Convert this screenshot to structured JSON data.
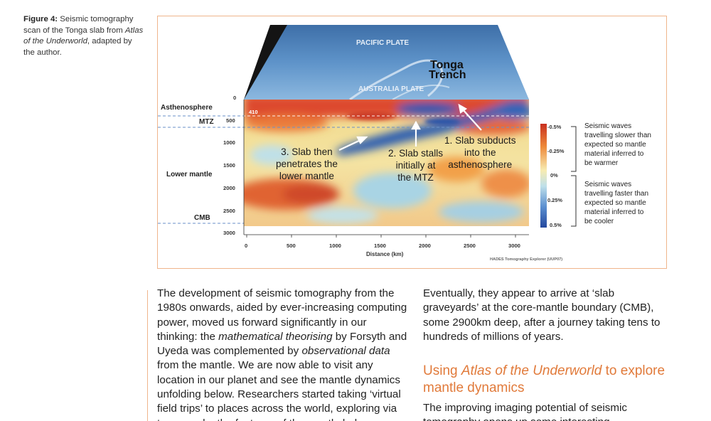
{
  "caption": {
    "label": "Figure 4:",
    "text_before": "Seismic tomography scan of the Tonga slab from",
    "source": "Atlas of the Underworld",
    "text_after": ", adapted by the author."
  },
  "figure": {
    "map_labels": {
      "pacific_plate": "PACIFIC PLATE",
      "tonga_trench_line1": "Tonga",
      "tonga_trench_line2": "Trench",
      "australia_plate": "AUSTRALIA PLATE"
    },
    "layer_labels": {
      "asthenosphere": "Asthenosphere",
      "mtz": "MTZ",
      "lower_mantle": "Lower mantle",
      "cmb": "CMB"
    },
    "depth_label_410": "410",
    "depth_ticks": [
      "0",
      "500",
      "1000",
      "1500",
      "2000",
      "2500",
      "3000"
    ],
    "distance_ticks": [
      "0",
      "500",
      "1000",
      "1500",
      "2000",
      "2500",
      "3000"
    ],
    "xlabel": "Distance (km)",
    "annotations": {
      "a1_line1": "1. Slab subducts",
      "a1_line2": "into the",
      "a1_line3": "asthenosphere",
      "a2_line1": "2. Slab stalls",
      "a2_line2": "initially at",
      "a2_line3": "the MTZ",
      "a3_line1": "3. Slab then",
      "a3_line2": "penetrates the",
      "a3_line3": "lower mantle"
    },
    "scale": {
      "ticks": [
        "-0.5%",
        "-0.25%",
        "0%",
        "0.25%",
        "0.5%"
      ],
      "slow_text": [
        "Seismic waves",
        "travelling slower than",
        "expected so mantle",
        "material inferred to",
        "be warmer"
      ],
      "fast_text": [
        "Seismic waves",
        "travelling faster than",
        "expected so mantle",
        "material inferred to",
        "be cooler"
      ]
    },
    "credit": "HADES Tomography Explorer (UUP07)"
  },
  "body": {
    "left_para_1": "The development of seismic tomography from the 1980s onwards, aided by ever-increasing computing power, moved us forward significantly in our thinking: the ",
    "left_para_em1": "mathematical theorising",
    "left_para_2": " by Forsyth and Uyeda was complemented by ",
    "left_para_em2": "observational data",
    "left_para_3": " from the mantle. We are now able to visit any location in our planet and see the mantle dynamics unfolding below. Researchers started taking ‘virtual field trips’ to places across the world, exploring via tomography the features of the mantle below.",
    "right_para": "Eventually, they appear to arrive at ‘slab graveyards’ at the core-mantle boundary (CMB), some 2900km deep, after a journey taking tens to hundreds of millions of years.",
    "heading_before": "Using ",
    "heading_em": "Atlas of the Underworld",
    "heading_after": " to explore mantle dynamics",
    "right_para_2": "The improving imaging potential of seismic tomography opens up some interesting"
  },
  "colors": {
    "accent": "#e17a3a",
    "frame": "#f0b58c",
    "slow": "#d9402a",
    "neutral": "#f6ecb6",
    "fast": "#2f5fb0"
  }
}
